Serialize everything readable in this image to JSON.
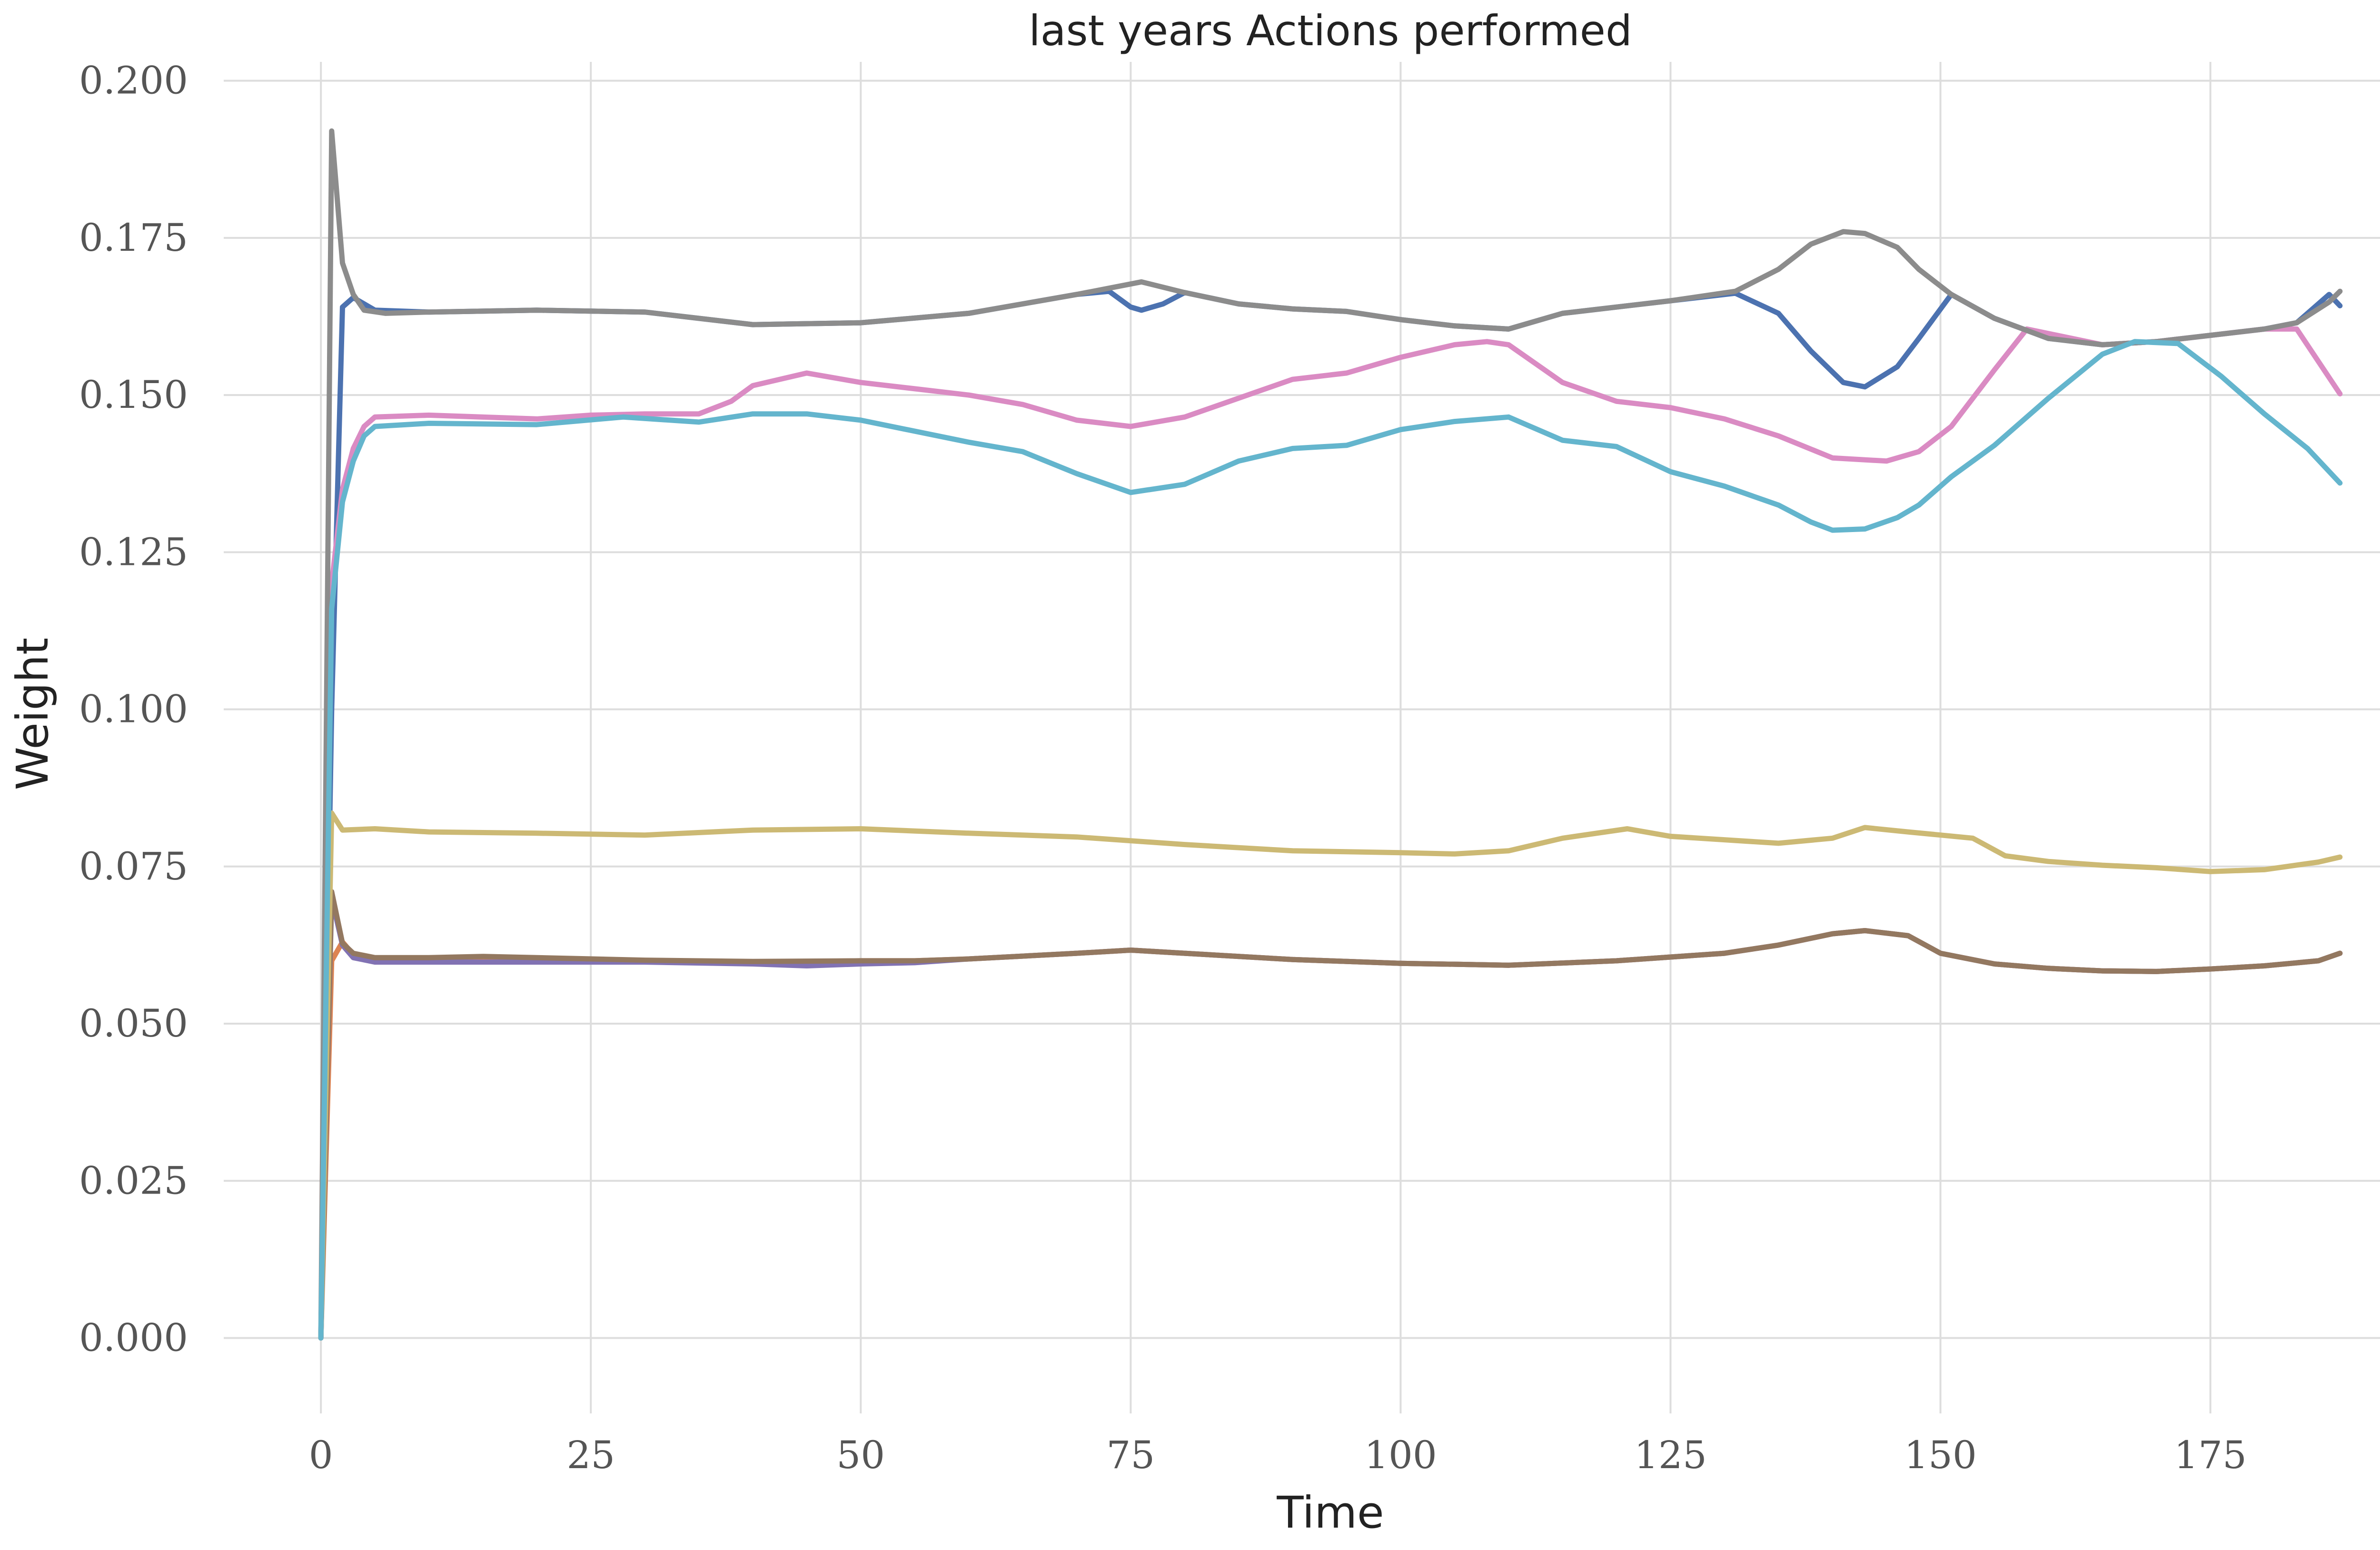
{
  "chart_data": {
    "type": "line",
    "title": "last years Actions performed",
    "xlabel": "Time",
    "ylabel": "Weight",
    "xlim": [
      -9,
      196
    ],
    "ylim": [
      -0.012,
      0.203
    ],
    "xticks": [
      0,
      25,
      50,
      75,
      100,
      125,
      150,
      175
    ],
    "yticks": [
      0.0,
      0.025,
      0.05,
      0.075,
      0.1,
      0.125,
      0.15,
      0.175,
      0.2
    ],
    "xtick_labels": [
      "0",
      "25",
      "50",
      "75",
      "100",
      "125",
      "150",
      "175"
    ],
    "ytick_labels": [
      "0.000",
      "0.025",
      "0.050",
      "0.075",
      "0.100",
      "0.125",
      "0.150",
      "0.175",
      "0.200"
    ],
    "grid": true,
    "legend": "none",
    "series": [
      {
        "color": "#4c72b0",
        "points": [
          [
            0,
            0.0
          ],
          [
            1,
            0.1
          ],
          [
            2,
            0.164
          ],
          [
            3,
            0.1655
          ],
          [
            5,
            0.1635
          ],
          [
            10,
            0.1632
          ],
          [
            20,
            0.1635
          ],
          [
            30,
            0.1632
          ],
          [
            40,
            0.1612
          ],
          [
            50,
            0.1615
          ],
          [
            60,
            0.163
          ],
          [
            70,
            0.166
          ],
          [
            73,
            0.1665
          ],
          [
            75,
            0.164
          ],
          [
            76,
            0.1635
          ],
          [
            78,
            0.1645
          ],
          [
            80,
            0.1663
          ],
          [
            85,
            0.1645
          ],
          [
            90,
            0.1637
          ],
          [
            95,
            0.1633
          ],
          [
            100,
            0.162
          ],
          [
            105,
            0.161
          ],
          [
            110,
            0.1605
          ],
          [
            115,
            0.163
          ],
          [
            120,
            0.164
          ],
          [
            125,
            0.165
          ],
          [
            131,
            0.1662
          ],
          [
            135,
            0.163
          ],
          [
            138,
            0.157
          ],
          [
            141,
            0.152
          ],
          [
            143,
            0.1513
          ],
          [
            146,
            0.1545
          ],
          [
            148,
            0.159
          ],
          [
            151,
            0.166
          ],
          [
            155,
            0.1622
          ],
          [
            160,
            0.159
          ],
          [
            165,
            0.158
          ],
          [
            170,
            0.1585
          ],
          [
            175,
            0.1595
          ],
          [
            180,
            0.1605
          ],
          [
            183,
            0.1615
          ],
          [
            186,
            0.166
          ],
          [
            187,
            0.1642
          ]
        ]
      },
      {
        "color": "#dd8452",
        "points": [
          [
            0,
            0.0
          ],
          [
            1,
            0.06
          ],
          [
            2,
            0.063
          ],
          [
            3,
            0.061
          ],
          [
            5,
            0.0603
          ],
          [
            10,
            0.0602
          ],
          [
            20,
            0.0603
          ],
          [
            30,
            0.06
          ],
          [
            40,
            0.0598
          ],
          [
            50,
            0.06
          ],
          [
            55,
            0.06
          ],
          [
            60,
            0.0603
          ],
          [
            70,
            0.0612
          ],
          [
            75,
            0.0617
          ],
          [
            80,
            0.0612
          ],
          [
            90,
            0.0602
          ],
          [
            100,
            0.0596
          ],
          [
            110,
            0.0593
          ],
          [
            120,
            0.06
          ],
          [
            130,
            0.0612
          ],
          [
            135,
            0.0625
          ],
          [
            140,
            0.0643
          ],
          [
            143,
            0.0648
          ],
          [
            147,
            0.064
          ],
          [
            150,
            0.0612
          ],
          [
            155,
            0.0595
          ],
          [
            160,
            0.0588
          ],
          [
            165,
            0.0584
          ],
          [
            170,
            0.0583
          ],
          [
            175,
            0.0587
          ],
          [
            180,
            0.0592
          ],
          [
            185,
            0.06
          ],
          [
            187,
            0.0612
          ]
        ]
      },
      {
        "color": "#8172b3",
        "points": [
          [
            0,
            0.0
          ],
          [
            1,
            0.07
          ],
          [
            2,
            0.0625
          ],
          [
            3,
            0.0605
          ],
          [
            5,
            0.0598
          ],
          [
            10,
            0.0598
          ],
          [
            20,
            0.0598
          ],
          [
            30,
            0.0598
          ],
          [
            40,
            0.0595
          ],
          [
            45,
            0.0592
          ],
          [
            50,
            0.0595
          ],
          [
            55,
            0.0597
          ],
          [
            60,
            0.0603
          ],
          [
            70,
            0.0612
          ],
          [
            75,
            0.0617
          ],
          [
            80,
            0.0612
          ],
          [
            90,
            0.0602
          ],
          [
            100,
            0.0596
          ],
          [
            110,
            0.0593
          ],
          [
            120,
            0.06
          ],
          [
            130,
            0.0612
          ],
          [
            135,
            0.0625
          ],
          [
            140,
            0.0643
          ],
          [
            143,
            0.0648
          ],
          [
            147,
            0.064
          ],
          [
            150,
            0.0612
          ],
          [
            155,
            0.0595
          ],
          [
            160,
            0.0588
          ],
          [
            165,
            0.0584
          ],
          [
            170,
            0.0583
          ],
          [
            175,
            0.0587
          ],
          [
            180,
            0.0592
          ],
          [
            185,
            0.06
          ],
          [
            187,
            0.0612
          ]
        ]
      },
      {
        "color": "#937860",
        "points": [
          [
            0,
            0.0
          ],
          [
            1,
            0.071
          ],
          [
            2,
            0.0628
          ],
          [
            3,
            0.0612
          ],
          [
            5,
            0.0605
          ],
          [
            10,
            0.0605
          ],
          [
            15,
            0.0607
          ],
          [
            20,
            0.0605
          ],
          [
            30,
            0.0601
          ],
          [
            40,
            0.0599
          ],
          [
            50,
            0.06
          ],
          [
            55,
            0.06
          ],
          [
            60,
            0.0603
          ],
          [
            70,
            0.0612
          ],
          [
            75,
            0.0617
          ],
          [
            80,
            0.0612
          ],
          [
            90,
            0.0602
          ],
          [
            100,
            0.0596
          ],
          [
            110,
            0.0593
          ],
          [
            120,
            0.06
          ],
          [
            130,
            0.0612
          ],
          [
            135,
            0.0625
          ],
          [
            140,
            0.0643
          ],
          [
            143,
            0.0648
          ],
          [
            147,
            0.064
          ],
          [
            150,
            0.0612
          ],
          [
            155,
            0.0595
          ],
          [
            160,
            0.0588
          ],
          [
            165,
            0.0584
          ],
          [
            170,
            0.0583
          ],
          [
            175,
            0.0587
          ],
          [
            180,
            0.0592
          ],
          [
            185,
            0.06
          ],
          [
            187,
            0.0612
          ]
        ]
      },
      {
        "color": "#da8bc3",
        "points": [
          [
            0,
            0.0
          ],
          [
            1,
            0.12
          ],
          [
            2,
            0.135
          ],
          [
            3,
            0.1415
          ],
          [
            4,
            0.145
          ],
          [
            5,
            0.1465
          ],
          [
            10,
            0.1468
          ],
          [
            20,
            0.1462
          ],
          [
            25,
            0.1468
          ],
          [
            30,
            0.147
          ],
          [
            35,
            0.147
          ],
          [
            38,
            0.149
          ],
          [
            40,
            0.1515
          ],
          [
            45,
            0.1535
          ],
          [
            50,
            0.152
          ],
          [
            55,
            0.151
          ],
          [
            60,
            0.15
          ],
          [
            65,
            0.1485
          ],
          [
            70,
            0.146
          ],
          [
            75,
            0.145
          ],
          [
            80,
            0.1465
          ],
          [
            85,
            0.1495
          ],
          [
            90,
            0.1525
          ],
          [
            95,
            0.1535
          ],
          [
            100,
            0.156
          ],
          [
            105,
            0.158
          ],
          [
            108,
            0.1585
          ],
          [
            110,
            0.158
          ],
          [
            115,
            0.152
          ],
          [
            120,
            0.149
          ],
          [
            125,
            0.148
          ],
          [
            130,
            0.1462
          ],
          [
            135,
            0.1435
          ],
          [
            140,
            0.14
          ],
          [
            145,
            0.1395
          ],
          [
            148,
            0.141
          ],
          [
            151,
            0.145
          ],
          [
            155,
            0.154
          ],
          [
            158,
            0.1605
          ],
          [
            165,
            0.158
          ],
          [
            170,
            0.1585
          ],
          [
            175,
            0.1595
          ],
          [
            180,
            0.1605
          ],
          [
            183,
            0.1605
          ],
          [
            187,
            0.1502
          ]
        ]
      },
      {
        "color": "#8c8c8c",
        "points": [
          [
            0,
            0.0
          ],
          [
            1,
            0.192
          ],
          [
            2,
            0.171
          ],
          [
            3,
            0.166
          ],
          [
            4,
            0.1635
          ],
          [
            6,
            0.163
          ],
          [
            10,
            0.1632
          ],
          [
            20,
            0.1635
          ],
          [
            30,
            0.1632
          ],
          [
            40,
            0.1612
          ],
          [
            50,
            0.1615
          ],
          [
            60,
            0.163
          ],
          [
            70,
            0.166
          ],
          [
            76,
            0.168
          ],
          [
            80,
            0.1663
          ],
          [
            85,
            0.1645
          ],
          [
            90,
            0.1637
          ],
          [
            95,
            0.1633
          ],
          [
            100,
            0.162
          ],
          [
            105,
            0.161
          ],
          [
            110,
            0.1605
          ],
          [
            115,
            0.163
          ],
          [
            120,
            0.164
          ],
          [
            125,
            0.165
          ],
          [
            131,
            0.1665
          ],
          [
            135,
            0.17
          ],
          [
            138,
            0.174
          ],
          [
            141,
            0.176
          ],
          [
            143,
            0.1757
          ],
          [
            146,
            0.1735
          ],
          [
            148,
            0.17
          ],
          [
            151,
            0.166
          ],
          [
            155,
            0.1622
          ],
          [
            160,
            0.159
          ],
          [
            165,
            0.158
          ],
          [
            170,
            0.1585
          ],
          [
            175,
            0.1595
          ],
          [
            180,
            0.1605
          ],
          [
            183,
            0.1615
          ],
          [
            186,
            0.1648
          ],
          [
            187,
            0.1665
          ]
        ]
      },
      {
        "color": "#ccb974",
        "points": [
          [
            0,
            0.0
          ],
          [
            1,
            0.0835
          ],
          [
            2,
            0.0808
          ],
          [
            5,
            0.081
          ],
          [
            10,
            0.0805
          ],
          [
            20,
            0.0803
          ],
          [
            30,
            0.08
          ],
          [
            40,
            0.0808
          ],
          [
            50,
            0.081
          ],
          [
            60,
            0.0803
          ],
          [
            70,
            0.0797
          ],
          [
            80,
            0.0785
          ],
          [
            90,
            0.0775
          ],
          [
            100,
            0.0772
          ],
          [
            105,
            0.077
          ],
          [
            110,
            0.0775
          ],
          [
            115,
            0.0795
          ],
          [
            121,
            0.081
          ],
          [
            125,
            0.0798
          ],
          [
            135,
            0.0787
          ],
          [
            140,
            0.0795
          ],
          [
            143,
            0.0812
          ],
          [
            147,
            0.0805
          ],
          [
            150,
            0.08
          ],
          [
            153,
            0.0795
          ],
          [
            156,
            0.0767
          ],
          [
            160,
            0.0758
          ],
          [
            165,
            0.0752
          ],
          [
            170,
            0.0748
          ],
          [
            175,
            0.0742
          ],
          [
            180,
            0.0745
          ],
          [
            185,
            0.0757
          ],
          [
            187,
            0.0765
          ]
        ]
      },
      {
        "color": "#64b5cd",
        "points": [
          [
            0,
            0.0
          ],
          [
            1,
            0.116
          ],
          [
            2,
            0.133
          ],
          [
            3,
            0.1395
          ],
          [
            4,
            0.1435
          ],
          [
            5,
            0.145
          ],
          [
            10,
            0.1455
          ],
          [
            20,
            0.1453
          ],
          [
            28,
            0.1465
          ],
          [
            35,
            0.1457
          ],
          [
            40,
            0.147
          ],
          [
            45,
            0.147
          ],
          [
            50,
            0.146
          ],
          [
            60,
            0.1425
          ],
          [
            65,
            0.141
          ],
          [
            70,
            0.1375
          ],
          [
            75,
            0.1345
          ],
          [
            80,
            0.1358
          ],
          [
            85,
            0.1395
          ],
          [
            90,
            0.1415
          ],
          [
            95,
            0.142
          ],
          [
            100,
            0.1445
          ],
          [
            105,
            0.1458
          ],
          [
            110,
            0.1465
          ],
          [
            115,
            0.1428
          ],
          [
            120,
            0.1418
          ],
          [
            125,
            0.1378
          ],
          [
            130,
            0.1355
          ],
          [
            135,
            0.1325
          ],
          [
            138,
            0.1298
          ],
          [
            140,
            0.1285
          ],
          [
            143,
            0.1287
          ],
          [
            146,
            0.1305
          ],
          [
            148,
            0.1325
          ],
          [
            151,
            0.137
          ],
          [
            155,
            0.142
          ],
          [
            160,
            0.1495
          ],
          [
            165,
            0.1565
          ],
          [
            168,
            0.1585
          ],
          [
            172,
            0.1582
          ],
          [
            176,
            0.153
          ],
          [
            180,
            0.147
          ],
          [
            184,
            0.1415
          ],
          [
            187,
            0.136
          ]
        ]
      }
    ]
  }
}
